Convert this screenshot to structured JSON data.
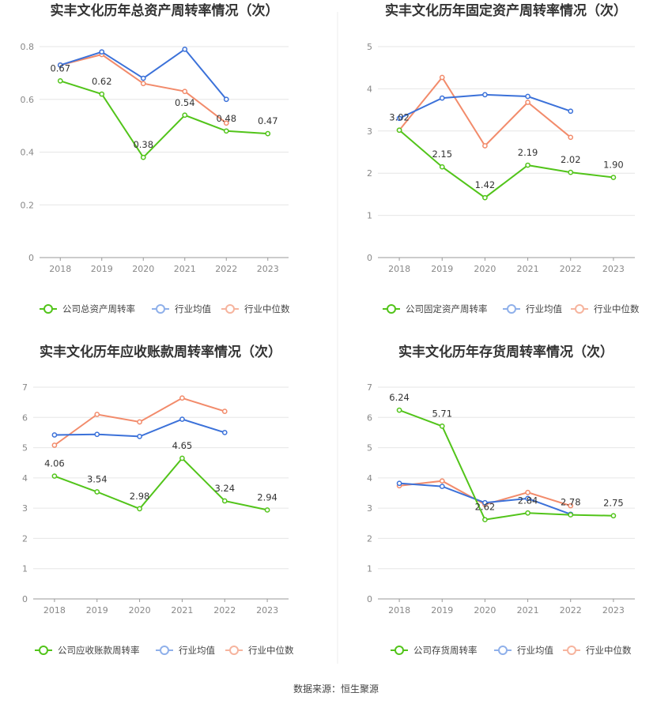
{
  "source_label": "数据来源：恒生聚源",
  "legend_colors": [
    "#52c41a",
    "#3b71d9",
    "#f28b6b"
  ],
  "legend_light_colors": [
    "#52c41a",
    "#8fb0ea",
    "#f6b49e"
  ],
  "chart_data": [
    {
      "type": "line",
      "title": "实丰文化历年总资产周转率情况（次）",
      "categories": [
        "2018",
        "2019",
        "2020",
        "2021",
        "2022",
        "2023"
      ],
      "ylim": [
        0,
        0.8
      ],
      "yticks": [
        "0",
        "0.2",
        "0.4",
        "0.6",
        "0.8"
      ],
      "grid": true,
      "legend_position": "bottom",
      "series": [
        {
          "name": "公司总资产周转率",
          "values": [
            0.67,
            0.62,
            0.38,
            0.54,
            0.48,
            0.47
          ],
          "labels": [
            "0.67",
            "0.62",
            "0.38",
            "0.54",
            "0.48",
            "0.47"
          ],
          "color": "#52c41a"
        },
        {
          "name": "行业均值",
          "values": [
            0.73,
            0.78,
            0.68,
            0.79,
            0.6,
            null
          ],
          "color": "#3b71d9"
        },
        {
          "name": "行业中位数",
          "values": [
            0.73,
            0.77,
            0.66,
            0.63,
            0.51,
            null
          ],
          "color": "#f28b6b"
        }
      ]
    },
    {
      "type": "line",
      "title": "实丰文化历年固定资产周转率情况（次）",
      "categories": [
        "2018",
        "2019",
        "2020",
        "2021",
        "2022",
        "2023"
      ],
      "ylim": [
        0,
        5
      ],
      "yticks": [
        "0",
        "1",
        "2",
        "3",
        "4",
        "5"
      ],
      "grid": true,
      "legend_position": "bottom",
      "series": [
        {
          "name": "公司固定资产周转率",
          "values": [
            3.02,
            2.15,
            1.42,
            2.19,
            2.02,
            1.9
          ],
          "labels": [
            "3.02",
            "2.15",
            "1.42",
            "2.19",
            "2.02",
            "1.90"
          ],
          "color": "#52c41a"
        },
        {
          "name": "行业均值",
          "values": [
            3.3,
            3.78,
            3.86,
            3.82,
            3.47,
            null
          ],
          "color": "#3b71d9"
        },
        {
          "name": "行业中位数",
          "values": [
            3.02,
            4.27,
            2.65,
            3.68,
            2.85,
            null
          ],
          "color": "#f28b6b"
        }
      ]
    },
    {
      "type": "line",
      "title": "实丰文化历年应收账款周转率情况（次）",
      "categories": [
        "2018",
        "2019",
        "2020",
        "2021",
        "2022",
        "2023"
      ],
      "ylim": [
        0,
        7
      ],
      "yticks": [
        "0",
        "1",
        "2",
        "3",
        "4",
        "5",
        "6",
        "7"
      ],
      "grid": true,
      "legend_position": "bottom",
      "series": [
        {
          "name": "公司应收账款周转率",
          "values": [
            4.06,
            3.54,
            2.98,
            4.65,
            3.24,
            2.94
          ],
          "labels": [
            "4.06",
            "3.54",
            "2.98",
            "4.65",
            "3.24",
            "2.94"
          ],
          "color": "#52c41a"
        },
        {
          "name": "行业均值",
          "values": [
            5.42,
            5.44,
            5.37,
            5.94,
            5.5,
            null
          ],
          "color": "#3b71d9"
        },
        {
          "name": "行业中位数",
          "values": [
            5.08,
            6.1,
            5.85,
            6.64,
            6.2,
            null
          ],
          "color": "#f28b6b"
        }
      ]
    },
    {
      "type": "line",
      "title": "实丰文化历年存货周转率情况（次）",
      "categories": [
        "2018",
        "2019",
        "2020",
        "2021",
        "2022",
        "2023"
      ],
      "ylim": [
        0,
        7
      ],
      "yticks": [
        "0",
        "1",
        "2",
        "3",
        "4",
        "5",
        "6",
        "7"
      ],
      "grid": true,
      "legend_position": "bottom",
      "series": [
        {
          "name": "公司存货周转率",
          "values": [
            6.24,
            5.71,
            2.62,
            2.84,
            2.78,
            2.75
          ],
          "labels": [
            "6.24",
            "5.71",
            "2.62",
            "2.84",
            "2.78",
            "2.75"
          ],
          "color": "#52c41a"
        },
        {
          "name": "行业均值",
          "values": [
            3.82,
            3.72,
            3.18,
            3.32,
            2.8,
            null
          ],
          "color": "#3b71d9"
        },
        {
          "name": "行业中位数",
          "values": [
            3.74,
            3.9,
            3.12,
            3.52,
            3.08,
            null
          ],
          "color": "#f28b6b"
        }
      ]
    }
  ]
}
